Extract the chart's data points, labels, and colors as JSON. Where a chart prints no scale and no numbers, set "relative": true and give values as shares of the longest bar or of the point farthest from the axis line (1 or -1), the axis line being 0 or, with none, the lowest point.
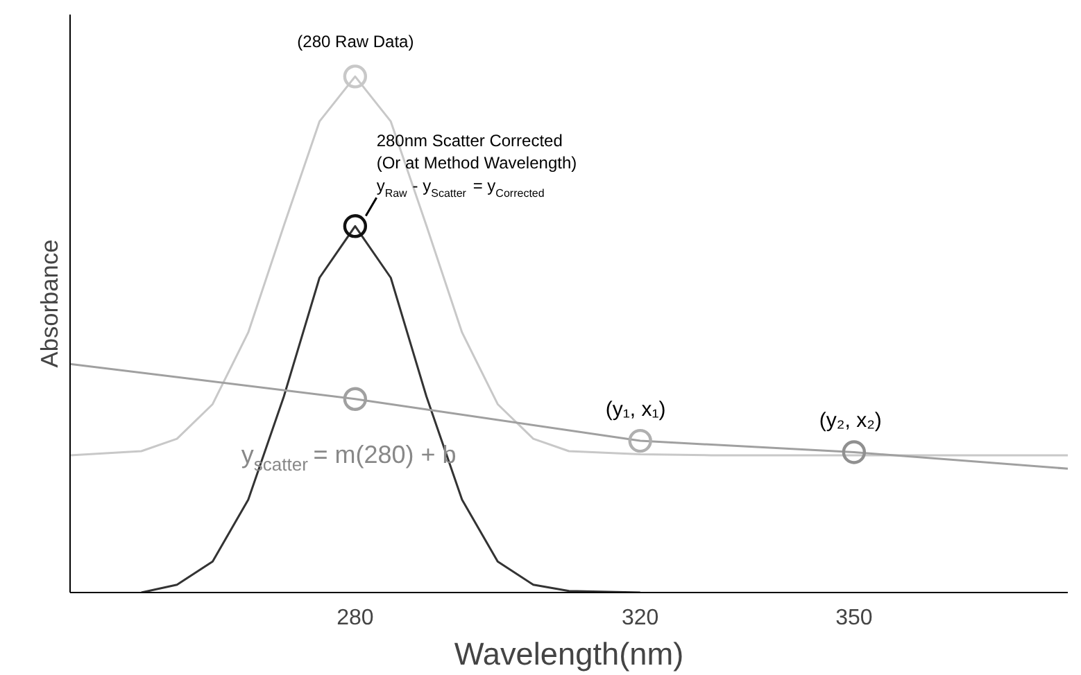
{
  "chart_data": {
    "type": "line",
    "relative": true,
    "xlabel": "Wavelength(nm)",
    "ylabel": "Absorbance",
    "xlim": [
      240,
      380
    ],
    "xticks": [
      280,
      320,
      350
    ],
    "grid": false,
    "tick_labels": "x",
    "series": [
      {
        "color": "#c8c8c8",
        "x": [
          240,
          250,
          255,
          260,
          265,
          270,
          275,
          280,
          285,
          290,
          295,
          300,
          305,
          310,
          320,
          330,
          340,
          350,
          360,
          370,
          380
        ],
        "values": [
          0.266,
          0.274,
          0.298,
          0.365,
          0.504,
          0.711,
          0.913,
          1.0,
          0.913,
          0.711,
          0.504,
          0.365,
          0.298,
          0.274,
          0.268,
          0.266,
          0.266,
          0.266,
          0.266,
          0.266,
          0.266
        ]
      },
      {
        "color": "#333333",
        "x": [
          250,
          255,
          260,
          265,
          270,
          275,
          280,
          285,
          290,
          295,
          300,
          305,
          310,
          320
        ],
        "values": [
          0.0,
          0.015,
          0.06,
          0.18,
          0.38,
          0.61,
          0.71,
          0.61,
          0.38,
          0.18,
          0.06,
          0.015,
          0.003,
          0.0
        ]
      },
      {
        "color": "#a0a0a0",
        "x": [
          240,
          280,
          320,
          350,
          380
        ],
        "values": [
          0.443,
          0.375,
          0.294,
          0.272,
          0.24
        ]
      },
      {
        "type": "scatter",
        "marker": "circle",
        "x": [
          280,
          280,
          280,
          320,
          350
        ],
        "values": [
          1.0,
          0.71,
          0.375,
          0.294,
          0.272
        ],
        "colors": [
          "#c8c8c8",
          "#111111",
          "#a0a0a0",
          "#b0b0b0",
          "#909090"
        ]
      }
    ],
    "annotations": [
      {
        "text": "(280 Raw Data)",
        "x": 280,
        "y": 1.0
      },
      {
        "text": "280nm Scatter Corrected\n(Or at Method Wavelength)\ny$_{Raw}$ - y$_{Scatter}$ = y$_{Corrected}$",
        "x": 280,
        "y": 0.71
      },
      {
        "text": "(y₁, x₁)",
        "x": 320,
        "y": 0.294
      },
      {
        "text": "(y₂, x₂)",
        "x": 350,
        "y": 0.272
      },
      {
        "text": "y$_{scatter}$ = m(280) + b",
        "x": 280,
        "y": 0.375
      }
    ]
  }
}
